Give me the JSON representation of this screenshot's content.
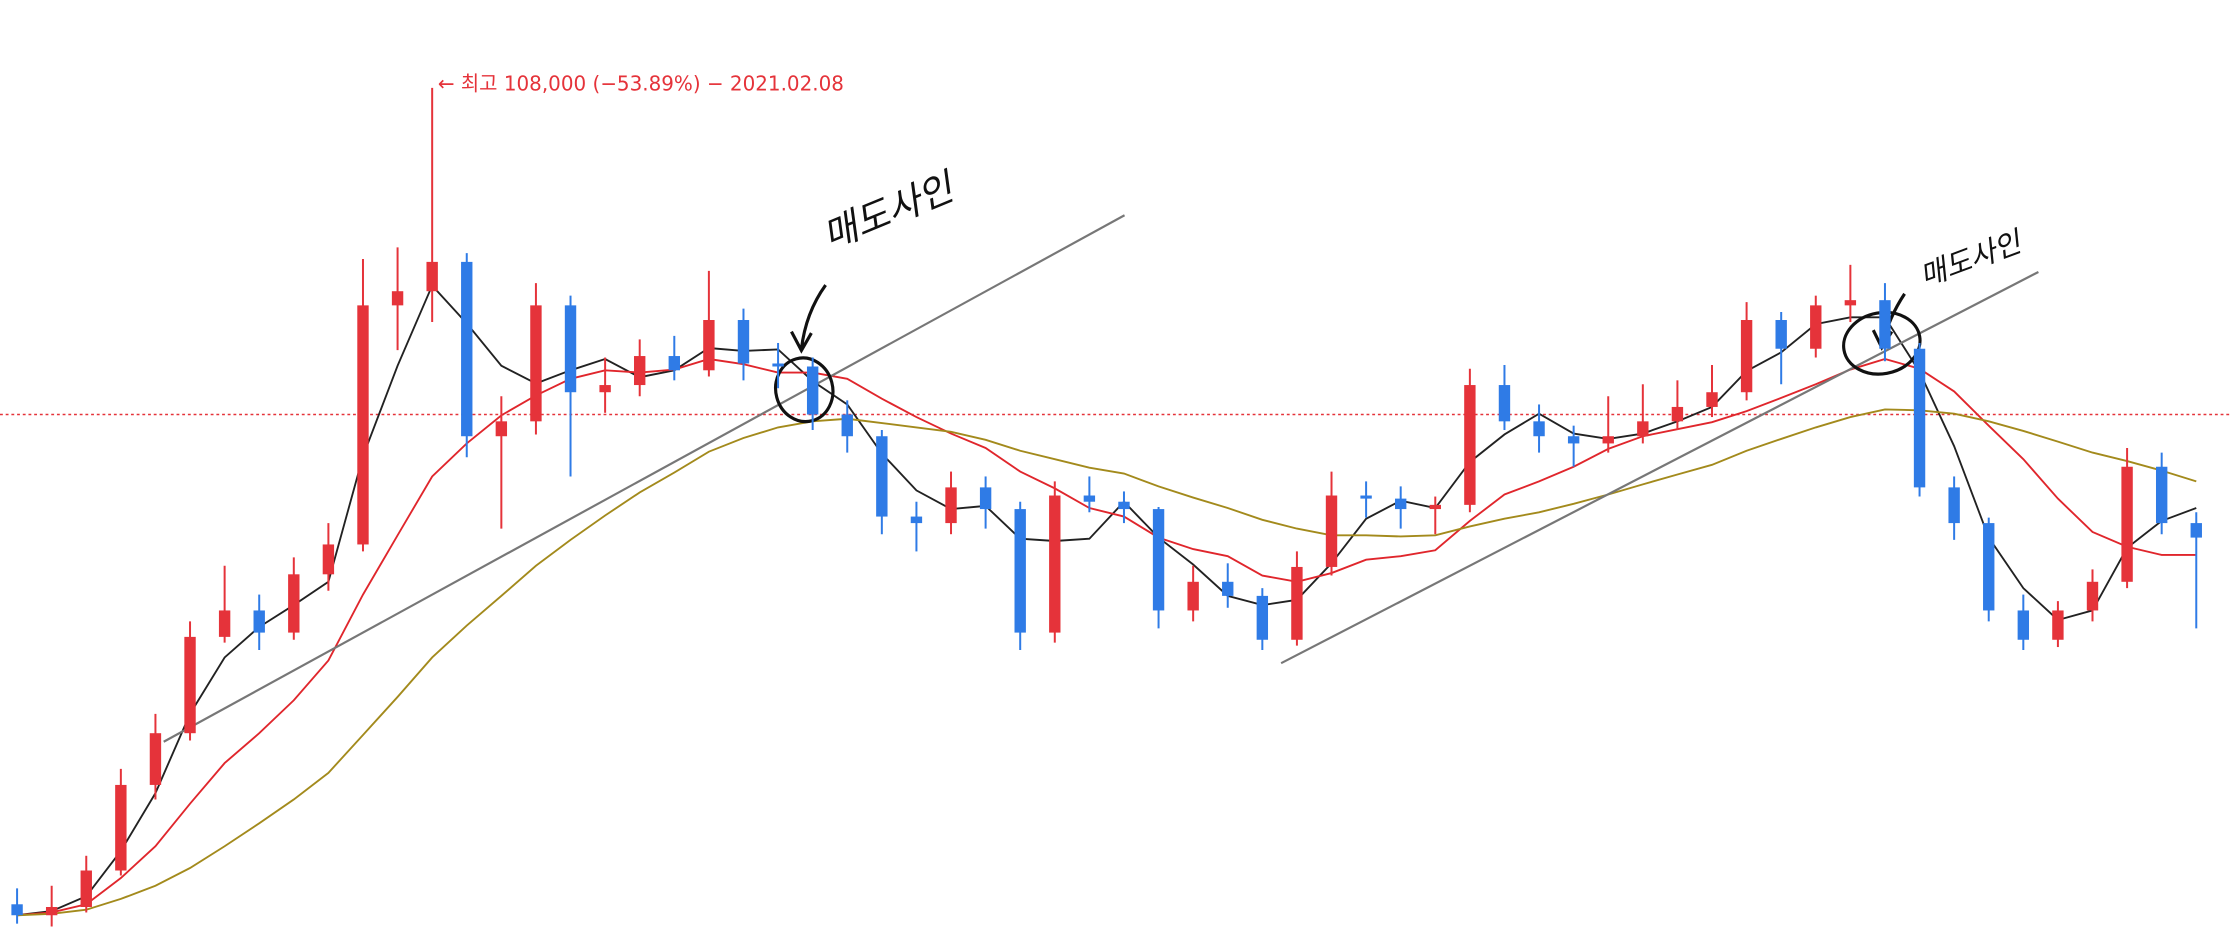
{
  "chart_data": {
    "type": "candlestick",
    "log_scale": true,
    "ylim": [
      14300,
      133000
    ],
    "up_color": "#e5333a",
    "down_color": "#2f7be6",
    "open": [
      15600,
      15200,
      15500,
      16900,
      20700,
      23400,
      29400,
      31300,
      29700,
      34100,
      36600,
      64500,
      66700,
      71500,
      47300,
      49000,
      64500,
      52500,
      53400,
      57200,
      55300,
      62300,
      56200,
      55800,
      49800,
      47300,
      39100,
      38500,
      41900,
      39800,
      29700,
      41100,
      40500,
      39800,
      31300,
      33500,
      32400,
      29200,
      34700,
      41100,
      40800,
      39800,
      40200,
      53400,
      49000,
      47300,
      46500,
      47300,
      49000,
      50700,
      52500,
      62300,
      58200,
      64500,
      65300,
      58200,
      41900,
      38500,
      31300,
      29200,
      31300,
      33500,
      44000,
      38500
    ],
    "high": [
      16200,
      16300,
      17500,
      21500,
      24500,
      30500,
      34800,
      32500,
      35500,
      38500,
      72000,
      74000,
      108000,
      73000,
      52000,
      68000,
      66000,
      57000,
      59500,
      60000,
      70000,
      64000,
      59000,
      57000,
      51500,
      48000,
      40500,
      43500,
      43000,
      40500,
      42500,
      43000,
      41500,
      40000,
      34800,
      35000,
      33000,
      36000,
      43500,
      42500,
      42000,
      41000,
      55500,
      56000,
      51000,
      48500,
      52000,
      53500,
      54000,
      56000,
      65000,
      63500,
      66000,
      71000,
      68000,
      59000,
      43000,
      39000,
      32500,
      32000,
      34500,
      46000,
      45500,
      39500
    ],
    "low": [
      14900,
      14800,
      15300,
      16700,
      20000,
      23000,
      29000,
      28500,
      29200,
      32800,
      36000,
      58000,
      62000,
      45000,
      38000,
      47500,
      43000,
      50000,
      52000,
      54000,
      54500,
      54000,
      53000,
      48000,
      45500,
      37500,
      36000,
      37500,
      38000,
      28500,
      29000,
      39500,
      38500,
      30000,
      30500,
      31500,
      28500,
      28800,
      34000,
      39000,
      38000,
      37500,
      39500,
      48000,
      45500,
      44000,
      45500,
      46500,
      48000,
      49500,
      51500,
      53500,
      57000,
      62000,
      56500,
      41000,
      37000,
      30500,
      28500,
      28700,
      30500,
      33000,
      37500,
      30000
    ],
    "close": [
      15200,
      15500,
      16900,
      20700,
      23400,
      29400,
      31300,
      29700,
      34100,
      36600,
      64500,
      66700,
      71500,
      47300,
      49000,
      64500,
      52500,
      53400,
      57200,
      55300,
      62300,
      56200,
      55800,
      49800,
      47300,
      39100,
      38500,
      41900,
      39800,
      29700,
      41100,
      40500,
      39800,
      31300,
      33500,
      32400,
      29200,
      34700,
      41100,
      40800,
      39800,
      40200,
      53400,
      49000,
      47300,
      46500,
      47300,
      49000,
      50700,
      52500,
      62300,
      58200,
      64500,
      65300,
      58200,
      41900,
      38500,
      31300,
      29200,
      31300,
      33500,
      44000,
      38500,
      37200
    ],
    "moving_averages": [
      {
        "color": "#222222",
        "values": [
          15200,
          15350,
          15900,
          17700,
          20300,
          24500,
          28000,
          30100,
          31700,
          33500,
          45100,
          55900,
          67600,
          61800,
          55900,
          53600,
          55300,
          56800,
          54400,
          55300,
          58300,
          57900,
          58100,
          53900,
          51000,
          45400,
          41600,
          39800,
          40100,
          37100,
          36900,
          37100,
          40500,
          37200,
          34900,
          32400,
          31700,
          32100,
          35000,
          38900,
          40600,
          39900,
          44500,
          47500,
          49900,
          47600,
          47000,
          47600,
          49000,
          50700,
          55200,
          57700,
          61700,
          62700,
          62700,
          55100,
          46200,
          37200,
          33000,
          30600,
          31300,
          36300,
          38700,
          39900
        ]
      },
      {
        "color": "#e0262c",
        "values": [
          15200,
          15300,
          15600,
          16600,
          17900,
          19800,
          21800,
          23400,
          25300,
          27800,
          32500,
          37400,
          43000,
          46500,
          49700,
          52100,
          54200,
          55300,
          55000,
          55400,
          56800,
          56100,
          55000,
          55000,
          54200,
          51700,
          49500,
          47600,
          46000,
          43500,
          41800,
          39900,
          39100,
          37200,
          36200,
          35600,
          34000,
          33500,
          34200,
          35300,
          35600,
          36100,
          38700,
          41200,
          42500,
          44000,
          45900,
          47300,
          48100,
          48900,
          50200,
          51800,
          53500,
          55400,
          56800,
          55500,
          52600,
          48500,
          44800,
          40800,
          37700,
          36400,
          35700,
          35700
        ]
      },
      {
        "color": "#a38a1c",
        "values": [
          15200,
          15250,
          15400,
          15800,
          16300,
          17000,
          17900,
          18900,
          20000,
          21300,
          23300,
          25500,
          28000,
          30200,
          32400,
          34800,
          37000,
          39200,
          41400,
          43400,
          45600,
          47100,
          48300,
          49000,
          49300,
          48800,
          48300,
          47800,
          46900,
          45700,
          44800,
          43900,
          43300,
          42000,
          40900,
          39900,
          38800,
          38000,
          37400,
          37400,
          37300,
          37400,
          38200,
          38900,
          39500,
          40300,
          41200,
          42200,
          43200,
          44200,
          45700,
          47000,
          48300,
          49500,
          50400,
          50300,
          49900,
          49000,
          47900,
          46700,
          45500,
          44600,
          43600,
          42500
        ]
      }
    ],
    "price_line": {
      "value": 49800,
      "color": "#e5333a"
    },
    "high_label": "← 최고 108,000 (−53.89%) − 2021.02.08",
    "annotations": [
      "매도사인",
      "매도사인"
    ]
  }
}
